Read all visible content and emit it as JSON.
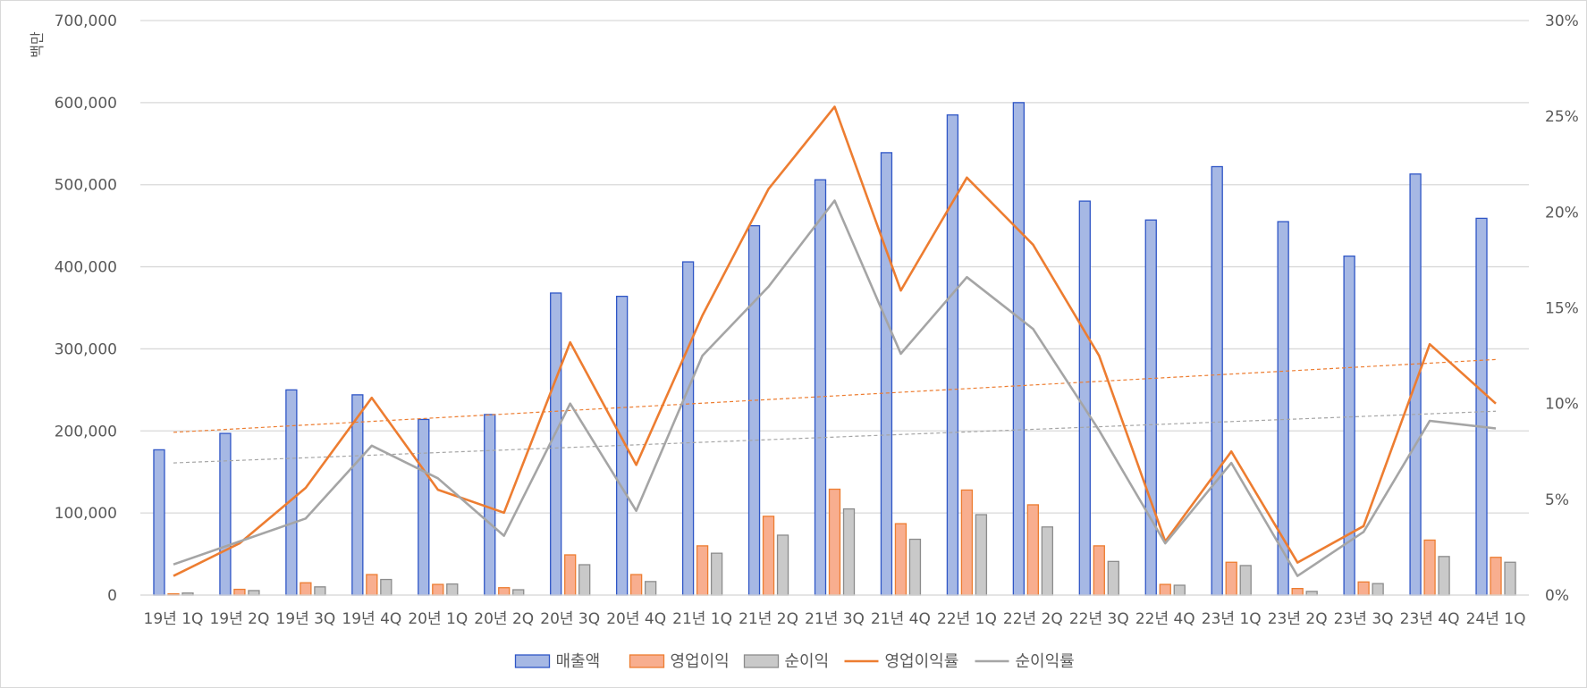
{
  "chart_data": {
    "type": "bar",
    "title": "",
    "y_unit_label": "백만",
    "categories": [
      "19년 1Q",
      "19년 2Q",
      "19년 3Q",
      "19년 4Q",
      "20년 1Q",
      "20년 2Q",
      "20년 3Q",
      "20년 4Q",
      "21년 1Q",
      "21년 2Q",
      "21년 3Q",
      "21년 4Q",
      "22년 1Q",
      "22년 2Q",
      "22년 3Q",
      "22년 4Q",
      "23년 1Q",
      "23년 2Q",
      "23년 3Q",
      "23년 4Q",
      "24년 1Q"
    ],
    "ylim": [
      0,
      700000
    ],
    "y_ticks": [
      "0",
      "100,000",
      "200,000",
      "300,000",
      "400,000",
      "500,000",
      "600,000",
      "700,000"
    ],
    "y2lim": [
      0,
      30
    ],
    "y2_ticks": [
      "0%",
      "5%",
      "10%",
      "15%",
      "20%",
      "25%",
      "30%"
    ],
    "grid": true,
    "legend_position": "bottom",
    "series": [
      {
        "name": "매출액",
        "type": "bar",
        "axis": "left",
        "color": "#a6b8e4",
        "stroke": "#2f56c6",
        "values": [
          177000,
          197000,
          250000,
          244000,
          214000,
          220000,
          368000,
          364000,
          406000,
          450000,
          506000,
          539000,
          585000,
          600000,
          480000,
          457000,
          522000,
          455000,
          413000,
          513000,
          459000
        ]
      },
      {
        "name": "영업이익",
        "type": "bar",
        "axis": "left",
        "color": "#f8ae8f",
        "stroke": "#ed7d31",
        "values": [
          1500,
          7000,
          15000,
          25000,
          13000,
          9000,
          49000,
          25000,
          60000,
          96000,
          129000,
          87000,
          128000,
          110000,
          60000,
          13000,
          40000,
          8000,
          16000,
          67000,
          46000
        ]
      },
      {
        "name": "순이익",
        "type": "bar",
        "axis": "left",
        "color": "#c9c9c9",
        "stroke": "#8c8c8c",
        "values": [
          2500,
          5500,
          10000,
          19000,
          13500,
          6500,
          37000,
          16500,
          51000,
          73000,
          105000,
          68000,
          98000,
          83000,
          41000,
          12000,
          36000,
          4500,
          14000,
          47000,
          40000
        ]
      },
      {
        "name": "영업이익률",
        "type": "line",
        "axis": "right",
        "color": "#ed7d31",
        "values": [
          1.0,
          2.7,
          5.6,
          10.3,
          5.5,
          4.3,
          13.2,
          6.8,
          14.6,
          21.2,
          25.5,
          15.9,
          21.8,
          18.3,
          12.5,
          2.8,
          7.5,
          1.7,
          3.6,
          13.1,
          10.0
        ]
      },
      {
        "name": "순이익률",
        "type": "line",
        "axis": "right",
        "color": "#a5a5a5",
        "values": [
          1.6,
          2.8,
          4.0,
          7.8,
          6.1,
          3.1,
          10.0,
          4.4,
          12.5,
          16.1,
          20.6,
          12.6,
          16.6,
          13.9,
          8.6,
          2.7,
          6.9,
          1.0,
          3.3,
          9.1,
          8.7
        ]
      }
    ],
    "trendlines": [
      {
        "of": "영업이익률",
        "color": "#ed7d31",
        "start": 8.5,
        "end": 12.3
      },
      {
        "of": "순이익률",
        "color": "#a5a5a5",
        "start": 6.9,
        "end": 9.6
      }
    ]
  }
}
